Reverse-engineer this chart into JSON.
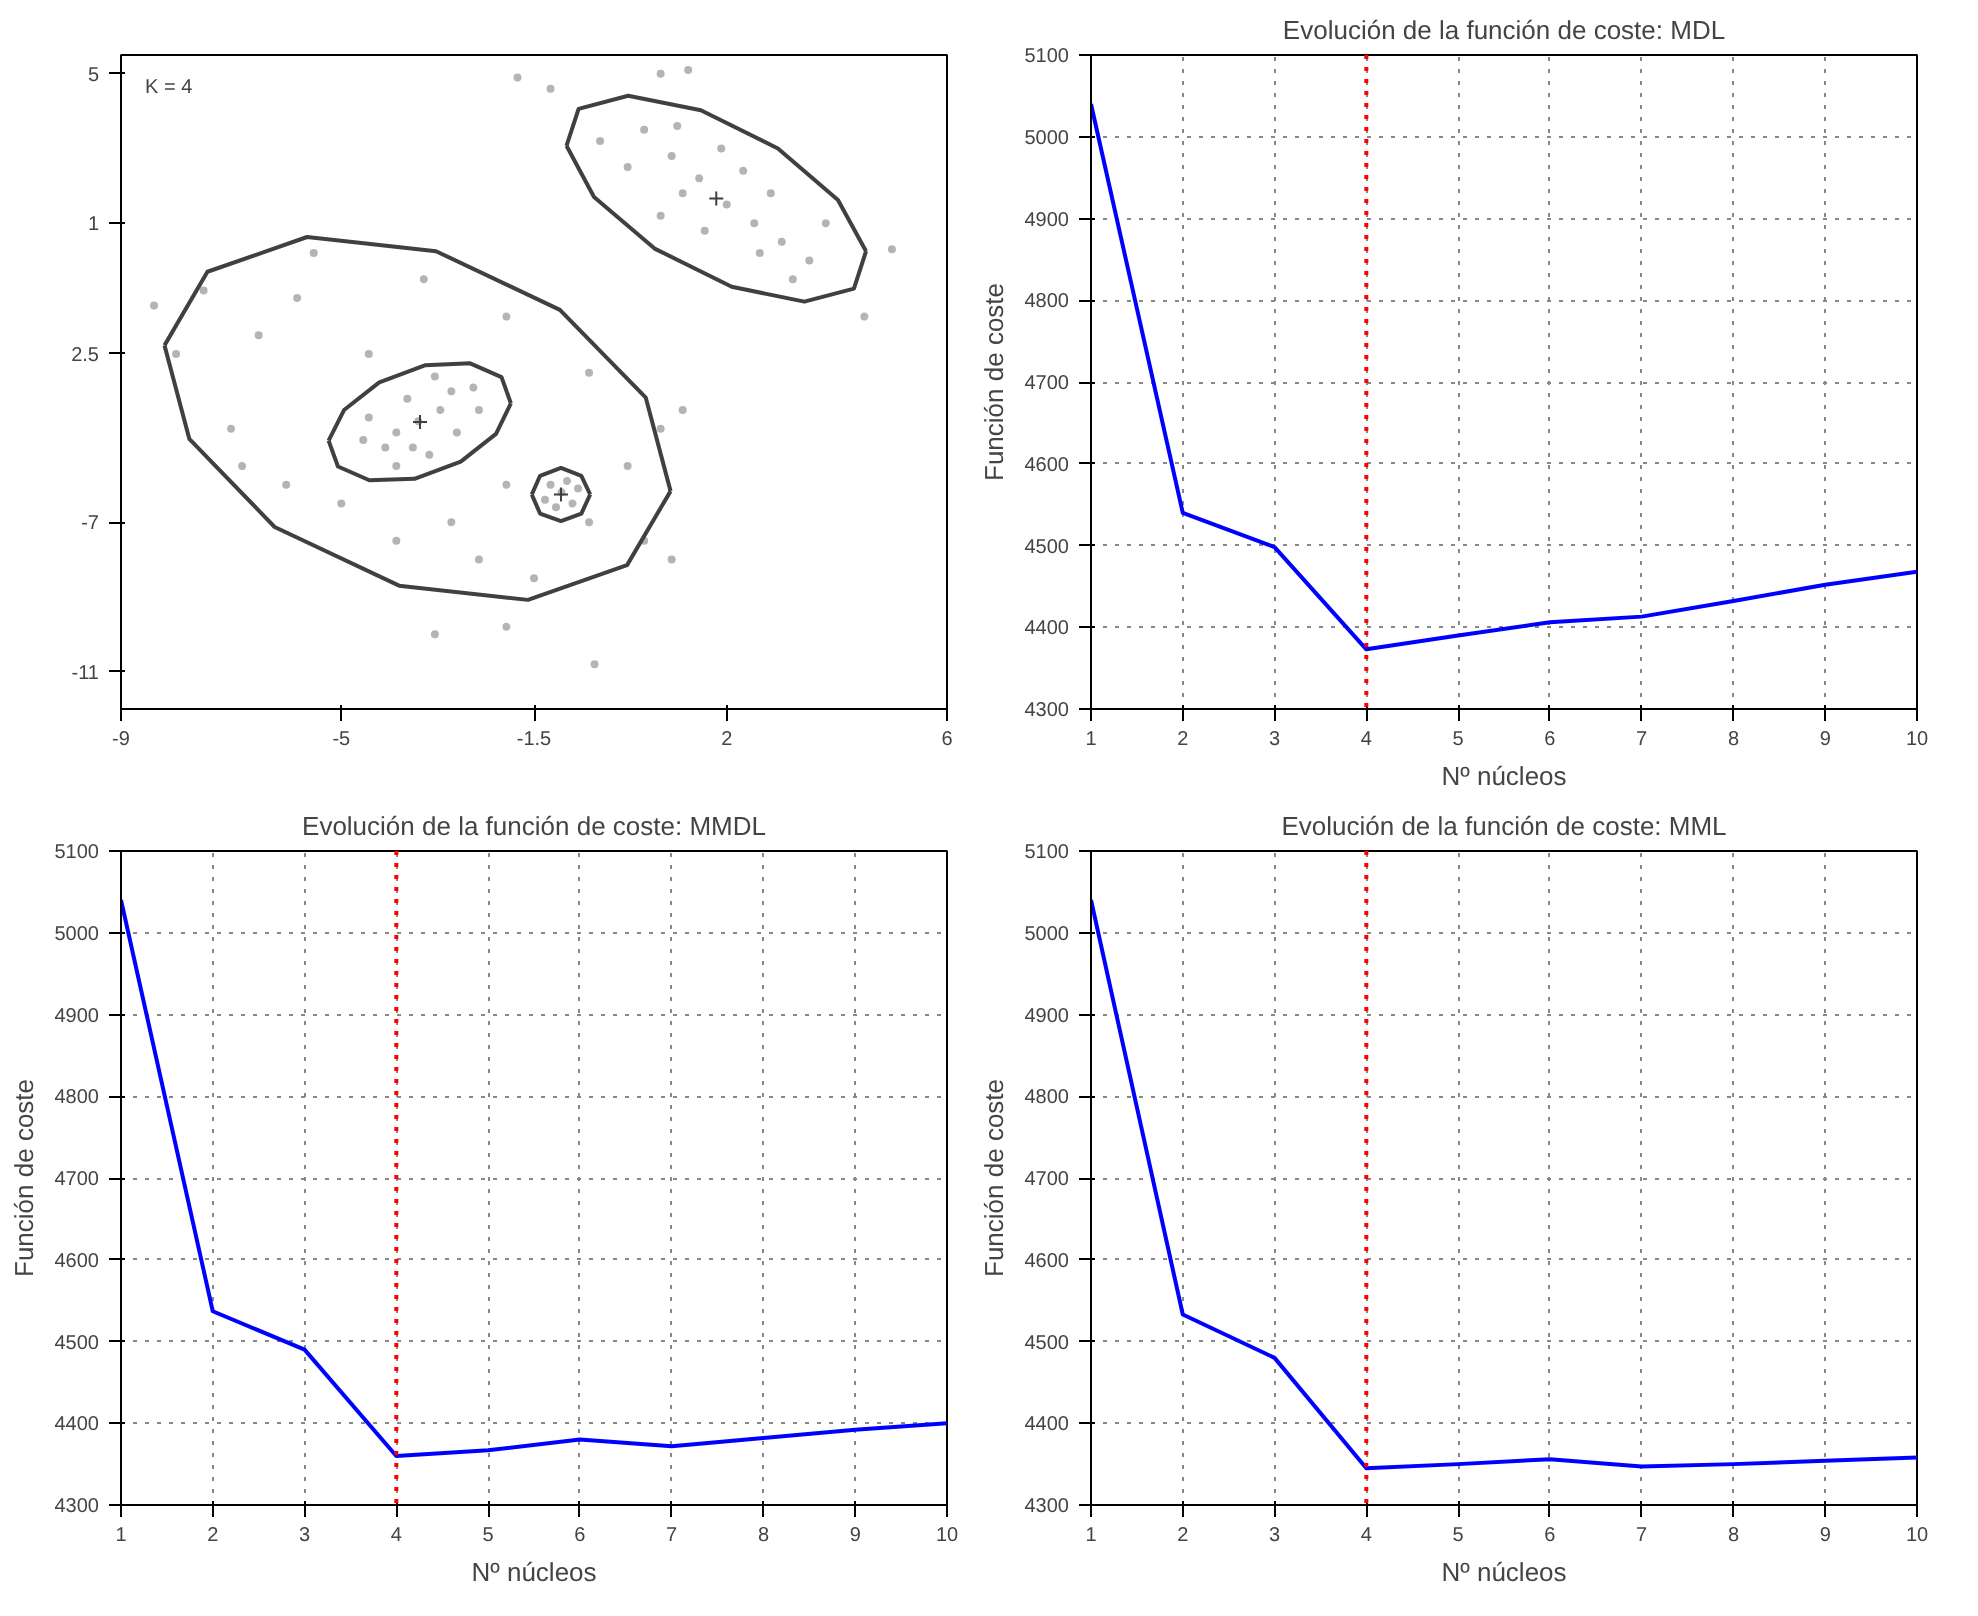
{
  "chart_data": [
    {
      "type": "scatter",
      "xlim": [
        -9,
        6
      ],
      "ylim": [
        -12,
        5.5
      ],
      "xticks": [
        -9,
        -5,
        -1.5,
        2,
        6
      ],
      "yticks": [
        5,
        1,
        {
          "value": -2.5,
          "label": "2.5"
        },
        -7,
        -11
      ],
      "grid": false,
      "annotations": [
        "K = 4"
      ],
      "series": [
        {
          "type": "scatter",
          "marker": "circle",
          "color": "#b4b4b4",
          "x": [
            0.5,
            1.0,
            1.5,
            2.0,
            2.5,
            3.0,
            3.5,
            1.2,
            2.3,
            0.8,
            2.8,
            3.2,
            1.6,
            0.2,
            1.9,
            2.6,
            3.8,
            -0.3,
            1.1,
            4.5,
            -1.2,
            5.0,
            0.8,
            1.3,
            -1.8,
            -3.6,
            -3.2,
            -4.0,
            -3.0,
            -4.2,
            -3.4,
            -2.6,
            -4.5,
            -3.8,
            -2.9,
            -4.0,
            -2.5,
            -3.3,
            -4.6,
            -3.7,
            -1.0,
            -1.2,
            -0.8,
            -1.1,
            -0.9,
            -1.3,
            -0.7,
            -6.5,
            -7.0,
            -5.8,
            -5.0,
            -6.0,
            -4.0,
            -2.5,
            -1.5,
            -0.5,
            0.2,
            -0.5,
            -2.0,
            -3.5,
            -5.5,
            -4.5,
            -6.8,
            -8.0,
            -2.0,
            -3.0,
            0.8,
            1.2,
            0.5,
            -7.5,
            -3.3,
            -2.0,
            -0.4,
            1.0,
            -8.4
          ],
          "values": [
            3.5,
            2.8,
            2.2,
            1.5,
            1.0,
            0.5,
            0.0,
            1.8,
            2.4,
            1.2,
            1.8,
            -0.5,
            0.8,
            2.5,
            3.0,
            0.2,
            1.0,
            3.2,
            3.6,
            -1.5,
            4.6,
            0.3,
            5.0,
            5.1,
            4.9,
            -4.3,
            -4.0,
            -4.6,
            -3.5,
            -5.0,
            -5.2,
            -3.4,
            -4.2,
            -3.7,
            -4.6,
            -5.5,
            -4.0,
            -3.1,
            -4.8,
            -5.0,
            -6.2,
            -6.0,
            -6.5,
            -6.6,
            -5.9,
            -6.4,
            -6.1,
            -2.0,
            -4.5,
            -1.0,
            -6.5,
            -6.0,
            -7.5,
            -8.0,
            -8.5,
            -7.0,
            -5.5,
            -3.0,
            -1.5,
            -0.5,
            0.2,
            -2.5,
            -5.5,
            -2.5,
            -6.0,
            -7.0,
            -4.5,
            -4.0,
            -7.5,
            -0.8,
            -10.0,
            -9.8,
            -10.8,
            -8.0,
            -1.2
          ]
        },
        {
          "type": "line",
          "color": "#404040",
          "x": [
            -0.91,
            -0.69,
            0.21,
            1.53,
            2.93,
            4.02,
            4.53
          ],
          "values": [
            3.07,
            4.06,
            4.41,
            4.02,
            3.0,
            1.62,
            0.25
          ]
        },
        {
          "type": "line",
          "color": "#404040",
          "x": [
            -0.91,
            -0.41,
            0.69,
            2.09,
            3.41,
            4.31,
            4.53
          ],
          "values": [
            3.07,
            1.7,
            0.32,
            -0.7,
            -1.1,
            -0.75,
            0.25
          ]
        },
        {
          "type": "line",
          "color": "#404040",
          "x": [
            -8.21,
            -7.43,
            -5.62,
            -3.28,
            -1.03,
            0.53,
            0.98
          ],
          "values": [
            -2.27,
            -0.3,
            0.63,
            0.25,
            -1.32,
            -3.67,
            -6.17
          ]
        },
        {
          "type": "line",
          "color": "#404040",
          "x": [
            -8.21,
            -7.76,
            -6.21,
            -3.95,
            -1.61,
            0.19,
            0.98
          ],
          "values": [
            -2.27,
            -4.77,
            -7.13,
            -8.7,
            -9.08,
            -8.15,
            -6.17
          ]
        },
        {
          "type": "line",
          "color": "#404040",
          "x": [
            -5.23,
            -4.95,
            -4.31,
            -3.47,
            -2.66,
            -2.09,
            -1.92
          ],
          "values": [
            -4.82,
            -4.0,
            -3.26,
            -2.8,
            -2.75,
            -3.12,
            -3.82
          ]
        },
        {
          "type": "line",
          "color": "#404040",
          "x": [
            -5.23,
            -5.06,
            -4.49,
            -3.67,
            -2.83,
            -2.19,
            -1.92
          ],
          "values": [
            -4.82,
            -5.51,
            -5.88,
            -5.84,
            -5.38,
            -4.64,
            -3.82
          ]
        },
        {
          "type": "line",
          "color": "#404040",
          "x": [
            -1.54,
            -1.39,
            -1.01,
            -0.64,
            -0.48
          ],
          "values": [
            -6.26,
            -5.76,
            -5.55,
            -5.76,
            -6.26
          ]
        },
        {
          "type": "line",
          "color": "#404040",
          "x": [
            -1.54,
            -1.39,
            -1.01,
            -0.64,
            -0.48
          ],
          "values": [
            -6.26,
            -6.77,
            -6.97,
            -6.77,
            -6.26
          ]
        },
        {
          "type": "scatter",
          "marker": "cross",
          "color": "#404040",
          "x": [
            1.81,
            -3.57,
            -1.01
          ],
          "values": [
            1.66,
            -4.32,
            -6.26
          ]
        }
      ]
    },
    {
      "type": "line",
      "title": "Evolución de la función de coste: MDL",
      "xlabel": "Nº núcleos",
      "ylabel": "Función de coste",
      "x": [
        1,
        2,
        3,
        4,
        5,
        6,
        7,
        8,
        9,
        10
      ],
      "xlim": [
        1,
        10
      ],
      "ylim": [
        4300,
        5100
      ],
      "xticks": [
        1,
        2,
        3,
        4,
        5,
        6,
        7,
        8,
        9,
        10
      ],
      "yticks": [
        4300,
        4400,
        4500,
        4600,
        4700,
        4800,
        4900,
        5000,
        5100
      ],
      "grid": true,
      "ref_lines": [
        {
          "axis": "x",
          "value": 4,
          "color": "#ff0000",
          "line_style": "dotted"
        }
      ],
      "series": [
        {
          "color": "#0000ff",
          "values": [
            5040,
            4540,
            4498,
            4373,
            4390,
            4406,
            4413,
            4432,
            4452,
            4468
          ]
        }
      ]
    },
    {
      "type": "line",
      "title": "Evolución de la función de coste: MMDL",
      "xlabel": "Nº núcleos",
      "ylabel": "Función de coste",
      "x": [
        1,
        2,
        3,
        4,
        5,
        6,
        7,
        8,
        9,
        10
      ],
      "xlim": [
        1,
        10
      ],
      "ylim": [
        4300,
        5100
      ],
      "xticks": [
        1,
        2,
        3,
        4,
        5,
        6,
        7,
        8,
        9,
        10
      ],
      "yticks": [
        4300,
        4400,
        4500,
        4600,
        4700,
        4800,
        4900,
        5000,
        5100
      ],
      "grid": true,
      "ref_lines": [
        {
          "axis": "x",
          "value": 4,
          "color": "#ff0000",
          "line_style": "dotted"
        }
      ],
      "series": [
        {
          "color": "#0000ff",
          "values": [
            5040,
            4537,
            4490,
            4360,
            4367,
            4380,
            4372,
            4382,
            4392,
            4400
          ]
        }
      ]
    },
    {
      "type": "line",
      "title": "Evolución de la función de coste: MML",
      "xlabel": "Nº núcleos",
      "ylabel": "Función de coste",
      "x": [
        1,
        2,
        3,
        4,
        5,
        6,
        7,
        8,
        9,
        10
      ],
      "xlim": [
        1,
        10
      ],
      "ylim": [
        4300,
        5100
      ],
      "xticks": [
        1,
        2,
        3,
        4,
        5,
        6,
        7,
        8,
        9,
        10
      ],
      "yticks": [
        4300,
        4400,
        4500,
        4600,
        4700,
        4800,
        4900,
        5000,
        5100
      ],
      "grid": true,
      "ref_lines": [
        {
          "axis": "x",
          "value": 4,
          "color": "#ff0000",
          "line_style": "dotted"
        }
      ],
      "series": [
        {
          "color": "#0000ff",
          "values": [
            5040,
            4533,
            4480,
            4345,
            4350,
            4356,
            4347,
            4350,
            4354,
            4358
          ]
        }
      ]
    }
  ]
}
